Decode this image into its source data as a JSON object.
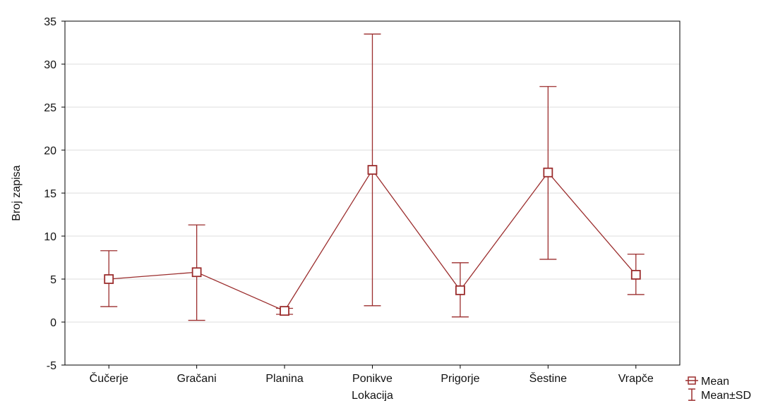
{
  "chart_data": {
    "type": "line",
    "categories": [
      "Čučerje",
      "Gračani",
      "Planina",
      "Ponikve",
      "Prigorje",
      "Šestine",
      "Vrapče"
    ],
    "series": [
      {
        "name": "Mean",
        "values": [
          5.0,
          5.8,
          1.3,
          17.7,
          3.7,
          17.4,
          5.5
        ],
        "sd_upper": [
          8.3,
          11.3,
          1.6,
          33.5,
          6.9,
          27.4,
          7.9
        ],
        "sd_lower": [
          1.8,
          0.2,
          0.9,
          1.9,
          0.6,
          7.3,
          3.2
        ]
      }
    ],
    "xlabel": "Lokacija",
    "ylabel": "Broj zapisa",
    "ylim": [
      -5,
      35
    ],
    "yticks": [
      -5,
      0,
      5,
      10,
      15,
      20,
      25,
      30,
      35
    ],
    "grid": true,
    "legend": {
      "placement": "bottom-right",
      "entries": [
        "Mean",
        "Mean±SD"
      ]
    },
    "colors": {
      "series": "#9b2d2d",
      "grid": "#dddddd",
      "frame": "#000000"
    }
  }
}
